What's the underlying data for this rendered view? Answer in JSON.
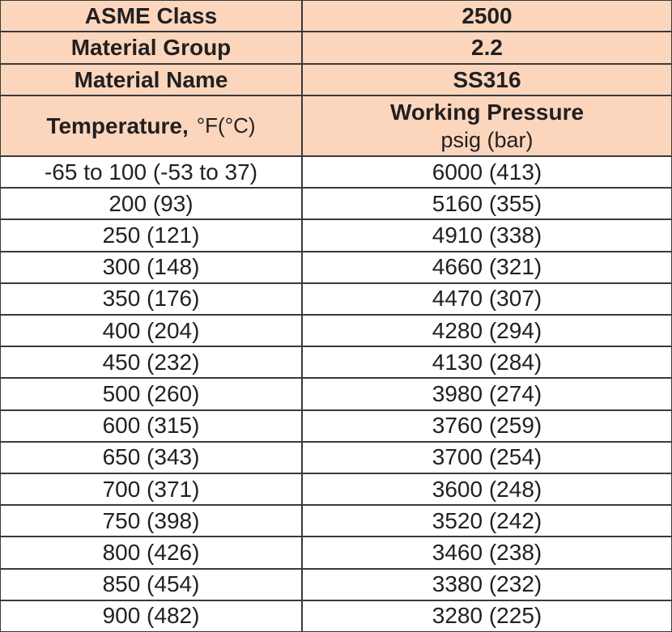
{
  "table": {
    "info_rows": [
      [
        "ASME Class",
        "2500"
      ],
      [
        "Material Group",
        "2.2"
      ],
      [
        "Material Name",
        "SS316"
      ]
    ],
    "column_header": {
      "temperature": {
        "label": "Temperature,",
        "unit": "°F(°C)"
      },
      "pressure": {
        "label": "Working Pressure",
        "unit": "psig (bar)"
      }
    },
    "rows": [
      [
        "-65 to 100 (-53 to 37)",
        "6000 (413)"
      ],
      [
        "200 (93)",
        "5160 (355)"
      ],
      [
        "250 (121)",
        "4910 (338)"
      ],
      [
        "300 (148)",
        "4660 (321)"
      ],
      [
        "350 (176)",
        "4470 (307)"
      ],
      [
        "400 (204)",
        "4280 (294)"
      ],
      [
        "450 (232)",
        "4130 (284)"
      ],
      [
        "500 (260)",
        "3980 (274)"
      ],
      [
        "600 (315)",
        "3760 (259)"
      ],
      [
        "650 (343)",
        "3700 (254)"
      ],
      [
        "700 (371)",
        "3600 (248)"
      ],
      [
        "750 (398)",
        "3520 (242)"
      ],
      [
        "800 (426)",
        "3460 (238)"
      ],
      [
        "850 (454)",
        "3380 (232)"
      ],
      [
        "900 (482)",
        "3280 (225)"
      ]
    ]
  }
}
